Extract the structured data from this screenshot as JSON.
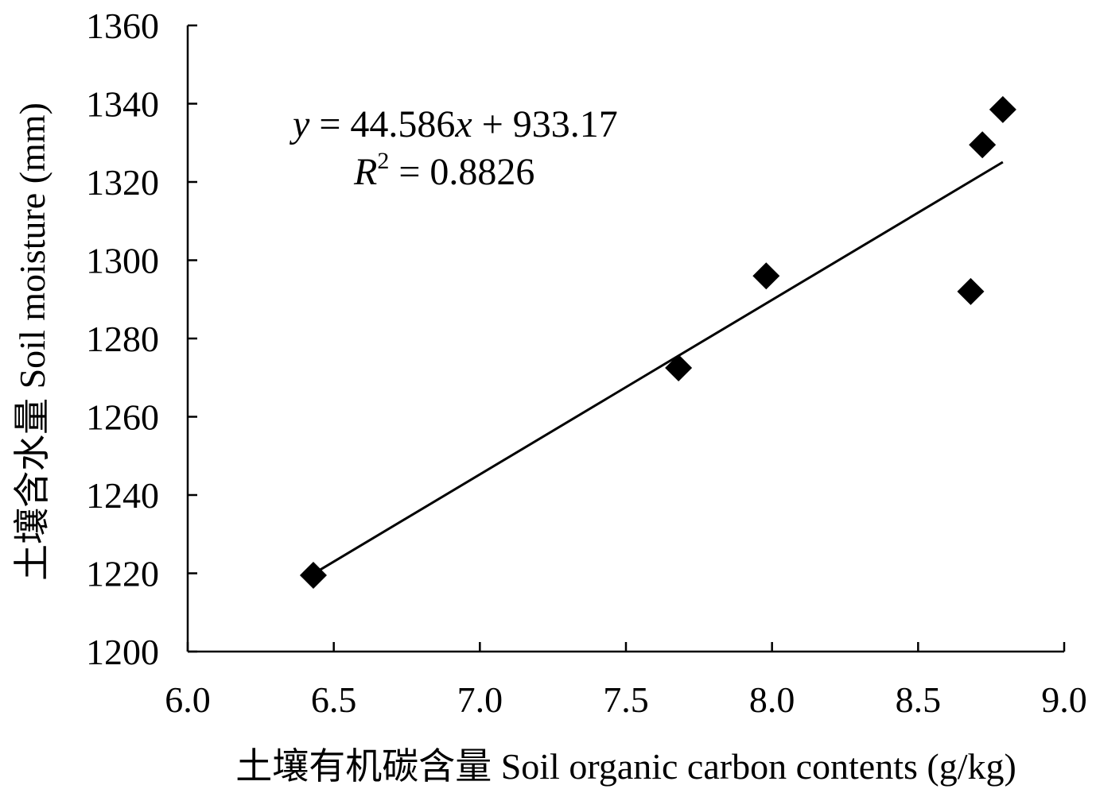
{
  "chart_data": {
    "type": "scatter",
    "xlabel": "土壤有机碳含量 Soil organic carbon contents (g/kg)",
    "ylabel": "土壤含水量 Soil moisture (mm)",
    "xlim": [
      6.0,
      9.0
    ],
    "ylim": [
      1200,
      1360
    ],
    "xticks": [
      "6.0",
      "6.5",
      "7.0",
      "7.5",
      "8.0",
      "8.5",
      "9.0"
    ],
    "yticks": [
      "1200",
      "1220",
      "1240",
      "1260",
      "1280",
      "1300",
      "1320",
      "1340",
      "1360"
    ],
    "grid": false,
    "marker": "diamond",
    "points": [
      {
        "x": 6.43,
        "y": 1219.5
      },
      {
        "x": 7.68,
        "y": 1272.5
      },
      {
        "x": 7.98,
        "y": 1296.0
      },
      {
        "x": 8.68,
        "y": 1292.0
      },
      {
        "x": 8.72,
        "y": 1329.5
      },
      {
        "x": 8.79,
        "y": 1338.5
      }
    ],
    "trendline": {
      "slope": 44.586,
      "intercept": 933.17,
      "x_range": [
        6.43,
        8.79
      ]
    },
    "annotations": {
      "equation": {
        "y_var": "y",
        "middle": " = 44.586",
        "x_var": "x",
        "tail": " + 933.17"
      },
      "r_squared": {
        "var": "R",
        "sup": "2",
        "rest": " = 0.8826"
      }
    },
    "colors": {
      "marker": "#000000",
      "line": "#000000",
      "axis": "#000000"
    }
  }
}
